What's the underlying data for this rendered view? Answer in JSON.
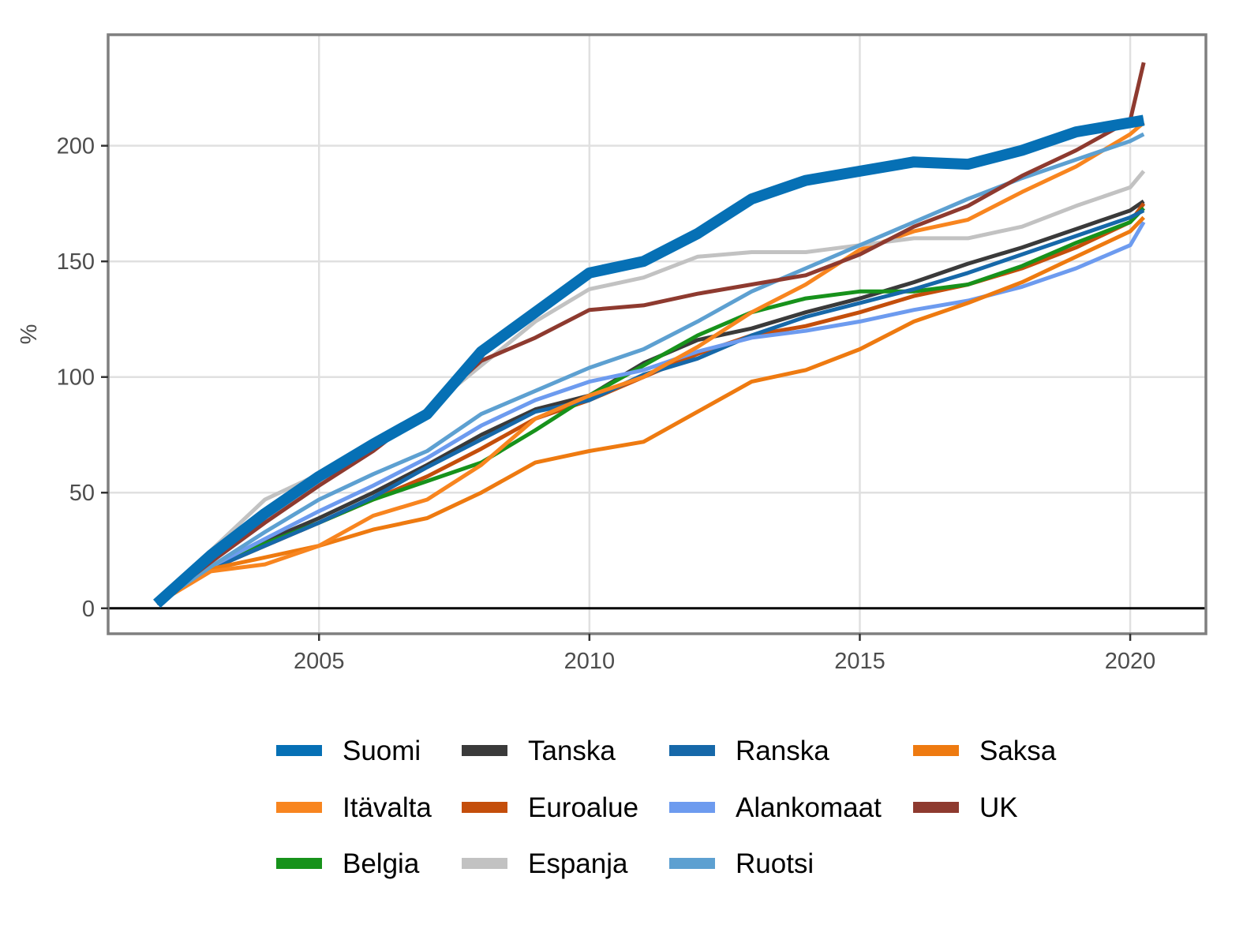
{
  "chart_data": {
    "type": "line",
    "ylabel": "%",
    "xlabel": "",
    "xlim": [
      2001.1,
      2021.4
    ],
    "ylim": [
      -11,
      248
    ],
    "x_ticks": [
      2005,
      2010,
      2015,
      2020
    ],
    "y_ticks": [
      0,
      50,
      100,
      150,
      200
    ],
    "x_tick_labels": [
      "2005",
      "2010",
      "2015",
      "2020"
    ],
    "y_tick_labels": [
      "0",
      "50",
      "100",
      "150",
      "200"
    ],
    "grid": true,
    "reference_line_y": 0,
    "legend_position": "bottom",
    "legend_rows": [
      [
        "Suomi",
        "Tanska",
        "Ranska",
        "Saksa"
      ],
      [
        "Itävalta",
        "Euroalue",
        "Alankomaat",
        "UK"
      ],
      [
        "Belgia",
        "Espanja",
        "Ruotsi"
      ]
    ],
    "series": [
      {
        "name": "Tanska",
        "color": "#3a3a3a",
        "width": 5,
        "x": [
          2002,
          2003,
          2004,
          2005,
          2006,
          2007,
          2008,
          2009,
          2010,
          2011,
          2012,
          2013,
          2014,
          2015,
          2016,
          2017,
          2018,
          2019,
          2020,
          2020.25
        ],
        "y": [
          2,
          18,
          29,
          39,
          50,
          62,
          75,
          86,
          92,
          106,
          116,
          121,
          128,
          134,
          141,
          149,
          156,
          164,
          172,
          176
        ]
      },
      {
        "name": "Euroalue",
        "color": "#c44e0b",
        "width": 5,
        "x": [
          2002,
          2003,
          2004,
          2005,
          2006,
          2007,
          2008,
          2009,
          2010,
          2011,
          2012,
          2013,
          2014,
          2015,
          2016,
          2017,
          2018,
          2019,
          2020,
          2020.25
        ],
        "y": [
          2,
          17,
          27,
          37,
          47,
          57,
          69,
          82,
          90,
          100,
          110,
          118,
          122,
          128,
          135,
          140,
          147,
          156,
          167,
          175
        ]
      },
      {
        "name": "Belgia",
        "color": "#17921b",
        "width": 5,
        "x": [
          2002,
          2003,
          2004,
          2005,
          2006,
          2007,
          2008,
          2009,
          2010,
          2011,
          2012,
          2013,
          2014,
          2015,
          2016,
          2017,
          2018,
          2019,
          2020,
          2020.25
        ],
        "y": [
          2,
          17,
          28,
          37,
          47,
          55,
          63,
          77,
          92,
          105,
          118,
          128,
          134,
          137,
          137,
          140,
          148,
          158,
          167,
          173
        ]
      },
      {
        "name": "Ranska",
        "color": "#1668a9",
        "width": 5,
        "x": [
          2002,
          2003,
          2004,
          2005,
          2006,
          2007,
          2008,
          2009,
          2010,
          2011,
          2012,
          2013,
          2014,
          2015,
          2016,
          2017,
          2018,
          2019,
          2020,
          2020.25
        ],
        "y": [
          2,
          17,
          27,
          37,
          48,
          61,
          73,
          85,
          90,
          101,
          108,
          118,
          126,
          132,
          138,
          145,
          153,
          161,
          169,
          172
        ]
      },
      {
        "name": "Alankomaat",
        "color": "#6d9bef",
        "width": 5,
        "x": [
          2002,
          2003,
          2004,
          2005,
          2006,
          2007,
          2008,
          2009,
          2010,
          2011,
          2012,
          2013,
          2014,
          2015,
          2016,
          2017,
          2018,
          2019,
          2020,
          2020.25
        ],
        "y": [
          2,
          18,
          30,
          42,
          53,
          65,
          79,
          90,
          98,
          103,
          111,
          117,
          120,
          124,
          129,
          133,
          139,
          147,
          157,
          167
        ]
      },
      {
        "name": "Saksa",
        "color": "#ee7a10",
        "width": 5,
        "x": [
          2002,
          2003,
          2004,
          2005,
          2006,
          2007,
          2008,
          2009,
          2010,
          2011,
          2012,
          2013,
          2014,
          2015,
          2016,
          2017,
          2018,
          2019,
          2020,
          2020.25
        ],
        "y": [
          2,
          17,
          22,
          27,
          34,
          39,
          50,
          63,
          68,
          72,
          85,
          98,
          103,
          112,
          124,
          132,
          141,
          152,
          163,
          169
        ]
      },
      {
        "name": "Itävalta",
        "color": "#f8851f",
        "width": 5,
        "x": [
          2002,
          2003,
          2004,
          2005,
          2006,
          2007,
          2008,
          2009,
          2010,
          2011,
          2012,
          2013,
          2014,
          2015,
          2016,
          2017,
          2018,
          2019,
          2020,
          2020.25
        ],
        "y": [
          2,
          16,
          19,
          27,
          40,
          47,
          62,
          82,
          92,
          100,
          113,
          128,
          140,
          155,
          163,
          168,
          180,
          191,
          205,
          210
        ]
      },
      {
        "name": "Espanja",
        "color": "#c2c2c2",
        "width": 5,
        "x": [
          2002,
          2003,
          2004,
          2005,
          2006,
          2007,
          2008,
          2009,
          2010,
          2011,
          2012,
          2013,
          2014,
          2015,
          2016,
          2017,
          2018,
          2019,
          2020,
          2020.25
        ],
        "y": [
          2,
          25,
          47,
          58,
          68,
          86,
          105,
          124,
          138,
          143,
          152,
          154,
          154,
          157,
          160,
          160,
          165,
          174,
          182,
          189
        ]
      },
      {
        "name": "Ruotsi",
        "color": "#5da0d1",
        "width": 5,
        "x": [
          2002,
          2003,
          2004,
          2005,
          2006,
          2007,
          2008,
          2009,
          2010,
          2011,
          2012,
          2013,
          2014,
          2015,
          2016,
          2017,
          2018,
          2019,
          2020,
          2020.25
        ],
        "y": [
          2,
          18,
          33,
          47,
          58,
          68,
          84,
          94,
          104,
          112,
          124,
          137,
          147,
          157,
          167,
          177,
          186,
          194,
          202,
          205
        ]
      },
      {
        "name": "UK",
        "color": "#8e3a2f",
        "width": 5,
        "x": [
          2002,
          2003,
          2004,
          2005,
          2006,
          2007,
          2008,
          2009,
          2010,
          2011,
          2012,
          2013,
          2014,
          2015,
          2016,
          2017,
          2018,
          2019,
          2020,
          2020.25
        ],
        "y": [
          2,
          20,
          37,
          53,
          68,
          86,
          107,
          117,
          129,
          131,
          136,
          140,
          144,
          153,
          165,
          174,
          187,
          198,
          211,
          236
        ]
      },
      {
        "name": "Suomi",
        "color": "#0670b5",
        "width": 14,
        "x": [
          2002,
          2003,
          2004,
          2005,
          2006,
          2007,
          2008,
          2009,
          2010,
          2011,
          2012,
          2013,
          2014,
          2015,
          2016,
          2017,
          2018,
          2019,
          2020,
          2020.25
        ],
        "y": [
          2,
          23,
          41,
          57,
          71,
          84,
          111,
          128,
          145,
          150,
          162,
          177,
          185,
          189,
          193,
          192,
          198,
          206,
          210,
          211
        ]
      }
    ]
  }
}
